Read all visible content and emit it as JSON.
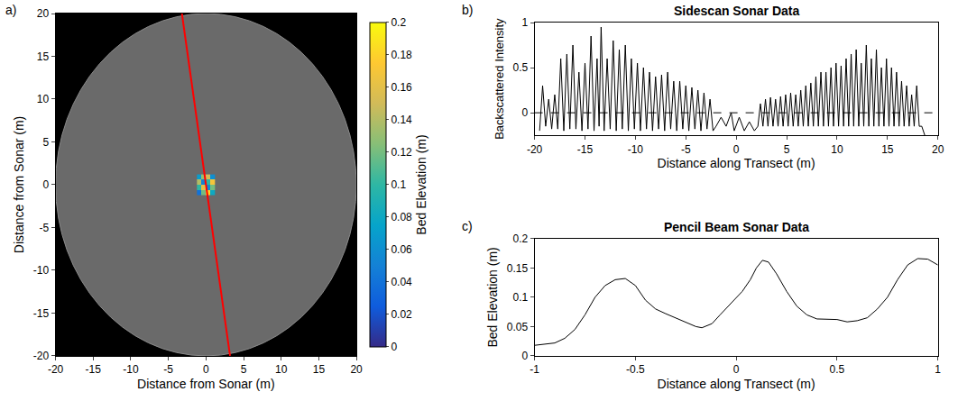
{
  "chart_data": [
    {
      "type": "heatmap",
      "panel_label": "a)",
      "xlabel": "Distance from Sonar (m)",
      "ylabel": "Distance from Sonar (m)",
      "xlim": [
        -20,
        20
      ],
      "ylim": [
        -20,
        20
      ],
      "xticks": [
        -20,
        -15,
        -10,
        -5,
        0,
        5,
        10,
        15,
        20
      ],
      "yticks": [
        -20,
        -15,
        -10,
        -5,
        0,
        5,
        10,
        15,
        20
      ],
      "coverage_radius": 20,
      "cells": {
        "x": [
          -0.9,
          -0.3,
          0.3,
          0.9
        ],
        "y": [
          -0.9,
          -0.3,
          0.3,
          0.9
        ],
        "z": [
          [
            0.04,
            0.12,
            0.18,
            0.08
          ],
          [
            0.1,
            0.16,
            0.06,
            0.12
          ],
          [
            0.14,
            0.05,
            0.1,
            0.17
          ],
          [
            0.07,
            0.13,
            0.15,
            0.06
          ]
        ]
      },
      "colorbar": {
        "title": "Bed Elevation (m)",
        "range": [
          0,
          0.2
        ],
        "ticks": [
          0,
          0.02,
          0.04,
          0.06,
          0.08,
          0.1,
          0.12,
          0.14,
          0.16,
          0.18,
          0.2
        ]
      },
      "transect": {
        "x": [
          -3.2,
          3.2
        ],
        "y": [
          20,
          -20
        ],
        "color": "#ff0000"
      }
    },
    {
      "type": "line",
      "panel_label": "b)",
      "title": "Sidescan Sonar Data",
      "xlabel": "Distance along Transect (m)",
      "ylabel": "Backscattered Intensity",
      "xlim": [
        -20,
        20
      ],
      "ylim": [
        -0.25,
        1
      ],
      "xticks": [
        -20,
        -15,
        -10,
        -5,
        0,
        5,
        10,
        15,
        20
      ],
      "yticks": [
        0,
        0.5,
        1
      ],
      "color": "#000000",
      "reference_lines": [
        {
          "y": 0,
          "line_style": "dash"
        }
      ],
      "x": [
        -19.5,
        -19.2,
        -18.9,
        -18.6,
        -18.3,
        -18.0,
        -17.7,
        -17.4,
        -17.1,
        -16.8,
        -16.5,
        -16.2,
        -15.9,
        -15.6,
        -15.3,
        -15.0,
        -14.7,
        -14.4,
        -14.1,
        -13.8,
        -13.6,
        -13.4,
        -13.1,
        -12.8,
        -12.5,
        -12.2,
        -11.9,
        -11.6,
        -11.3,
        -11.0,
        -10.7,
        -10.4,
        -10.1,
        -9.8,
        -9.5,
        -9.2,
        -8.9,
        -8.6,
        -8.3,
        -8.0,
        -7.7,
        -7.4,
        -7.1,
        -6.8,
        -6.5,
        -6.2,
        -5.9,
        -5.6,
        -5.3,
        -5.0,
        -4.7,
        -4.4,
        -4.1,
        -3.8,
        -3.5,
        -3.2,
        -2.9,
        -2.6,
        -2.3,
        -2.0,
        -1.5,
        -1.0,
        -0.5,
        -0.2,
        0.3,
        0.8,
        1.3,
        1.8,
        2.15,
        2.4,
        2.65,
        2.9,
        3.15,
        3.4,
        3.65,
        3.9,
        4.15,
        4.4,
        4.65,
        4.9,
        5.15,
        5.4,
        5.65,
        5.9,
        6.15,
        6.4,
        6.65,
        6.9,
        7.15,
        7.4,
        7.65,
        7.9,
        8.15,
        8.4,
        8.65,
        8.9,
        9.15,
        9.4,
        9.65,
        9.9,
        10.15,
        10.4,
        10.65,
        10.9,
        11.15,
        11.4,
        11.65,
        11.9,
        12.15,
        12.4,
        12.65,
        12.9,
        13.15,
        13.4,
        13.65,
        13.9,
        14.15,
        14.4,
        14.65,
        14.9,
        15.15,
        15.4,
        15.65,
        15.9,
        16.15,
        16.4,
        16.65,
        16.9,
        17.15,
        17.4,
        17.65,
        17.9,
        18.15,
        18.4,
        18.7
      ],
      "values": [
        -0.2,
        0.3,
        -0.15,
        0.15,
        -0.18,
        0.2,
        -0.18,
        0.6,
        -0.2,
        0.65,
        -0.18,
        0.75,
        -0.18,
        0.45,
        -0.2,
        0.55,
        -0.18,
        0.85,
        -0.2,
        0.6,
        -0.15,
        0.95,
        -0.2,
        0.6,
        -0.18,
        0.8,
        -0.2,
        0.7,
        -0.18,
        0.75,
        -0.2,
        0.6,
        -0.18,
        0.55,
        -0.2,
        0.5,
        -0.18,
        0.45,
        -0.2,
        0.4,
        -0.18,
        0.42,
        -0.2,
        0.45,
        -0.18,
        0.35,
        -0.2,
        0.35,
        -0.18,
        0.3,
        -0.2,
        0.28,
        -0.18,
        0.25,
        -0.2,
        0.22,
        -0.18,
        0.15,
        -0.2,
        -0.15,
        -0.05,
        -0.15,
        0.0,
        -0.2,
        -0.05,
        -0.2,
        -0.1,
        -0.2,
        -0.15,
        0.1,
        -0.15,
        0.15,
        -0.15,
        0.17,
        -0.15,
        0.15,
        -0.15,
        0.18,
        -0.15,
        0.2,
        -0.15,
        0.22,
        -0.15,
        0.2,
        -0.15,
        0.25,
        -0.15,
        0.3,
        -0.15,
        0.33,
        -0.15,
        0.4,
        -0.15,
        0.45,
        -0.15,
        0.45,
        -0.15,
        0.5,
        -0.15,
        0.55,
        -0.15,
        0.52,
        -0.15,
        0.6,
        -0.15,
        0.65,
        -0.15,
        0.7,
        -0.15,
        0.55,
        -0.15,
        0.75,
        -0.15,
        0.6,
        -0.15,
        0.7,
        -0.15,
        0.5,
        -0.15,
        0.6,
        -0.15,
        0.5,
        -0.15,
        0.45,
        -0.15,
        0.35,
        -0.15,
        0.3,
        -0.15,
        0.2,
        -0.15,
        0.3,
        -0.15,
        -0.15,
        -0.25
      ]
    },
    {
      "type": "line",
      "panel_label": "c)",
      "title": "Pencil Beam Sonar Data",
      "xlabel": "Distance along Transect (m)",
      "ylabel": "Bed Elevation (m)",
      "xlim": [
        -1,
        1
      ],
      "ylim": [
        0,
        0.2
      ],
      "xticks": [
        -1,
        -0.5,
        0,
        0.5,
        1
      ],
      "yticks": [
        0,
        0.05,
        0.1,
        0.15,
        0.2
      ],
      "color": "#000000",
      "x": [
        -1,
        -0.9,
        -0.85,
        -0.8,
        -0.75,
        -0.7,
        -0.65,
        -0.6,
        -0.55,
        -0.5,
        -0.45,
        -0.4,
        -0.35,
        -0.3,
        -0.25,
        -0.2,
        -0.17,
        -0.12,
        -0.08,
        -0.04,
        0,
        0.03,
        0.07,
        0.1,
        0.13,
        0.16,
        0.2,
        0.25,
        0.3,
        0.35,
        0.4,
        0.45,
        0.5,
        0.55,
        0.6,
        0.65,
        0.7,
        0.75,
        0.8,
        0.85,
        0.9,
        0.95,
        1
      ],
      "values": [
        0.018,
        0.022,
        0.03,
        0.045,
        0.07,
        0.1,
        0.12,
        0.13,
        0.132,
        0.12,
        0.095,
        0.08,
        0.072,
        0.065,
        0.058,
        0.05,
        0.048,
        0.055,
        0.07,
        0.085,
        0.1,
        0.11,
        0.13,
        0.15,
        0.163,
        0.16,
        0.14,
        0.11,
        0.085,
        0.07,
        0.063,
        0.063,
        0.062,
        0.058,
        0.06,
        0.065,
        0.08,
        0.1,
        0.13,
        0.155,
        0.166,
        0.165,
        0.155
      ]
    }
  ]
}
